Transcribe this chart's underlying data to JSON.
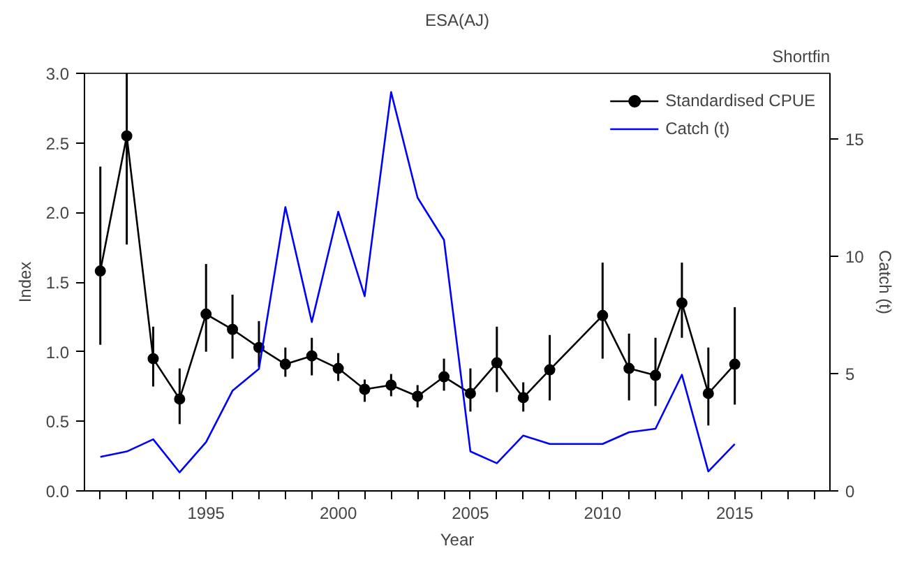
{
  "chart_data": {
    "type": "line",
    "title": "ESA(AJ)",
    "xlabel": "Year",
    "ylabel": "Index",
    "y2label": "Catch (t)",
    "annotations": [
      "Shortfin"
    ],
    "x": [
      1991,
      1992,
      1993,
      1994,
      1995,
      1996,
      1997,
      1998,
      1999,
      2000,
      2001,
      2002,
      2003,
      2004,
      2005,
      2006,
      2007,
      2008,
      2009,
      2010,
      2011,
      2012,
      2013,
      2014,
      2015
    ],
    "series": [
      {
        "name": "Standardised CPUE",
        "color": "#000000",
        "marker": "circle",
        "values": [
          1.58,
          2.55,
          0.95,
          0.66,
          1.27,
          1.16,
          1.03,
          0.91,
          0.97,
          0.88,
          0.73,
          0.76,
          0.68,
          0.82,
          0.7,
          0.92,
          0.67,
          0.87,
          null,
          1.26,
          0.88,
          0.83,
          1.35,
          0.7,
          0.91
        ],
        "errors": [
          [
            1.05,
            2.33
          ],
          [
            1.77,
            3.0
          ],
          [
            0.75,
            1.18
          ],
          [
            0.48,
            0.88
          ],
          [
            1.0,
            1.63
          ],
          [
            0.95,
            1.41
          ],
          [
            0.89,
            1.22
          ],
          [
            0.82,
            1.03
          ],
          [
            0.83,
            1.1
          ],
          [
            0.79,
            0.99
          ],
          [
            0.64,
            0.8
          ],
          [
            0.68,
            0.84
          ],
          [
            0.6,
            0.76
          ],
          [
            0.72,
            0.95
          ],
          [
            0.57,
            0.88
          ],
          [
            0.71,
            1.18
          ],
          [
            0.57,
            0.78
          ],
          [
            0.65,
            1.12
          ],
          null,
          [
            0.95,
            1.64
          ],
          [
            0.65,
            1.13
          ],
          [
            0.61,
            1.1
          ],
          [
            1.1,
            1.64
          ],
          [
            0.47,
            1.03
          ],
          [
            0.62,
            1.32
          ]
        ]
      },
      {
        "name": "Catch (t)",
        "color": "#0000ff",
        "axis": "y2",
        "marker": "none",
        "values": [
          1.45,
          1.68,
          2.2,
          0.79,
          2.08,
          4.27,
          5.2,
          12.1,
          7.2,
          11.9,
          8.3,
          17.0,
          12.5,
          10.7,
          1.68,
          1.18,
          2.36,
          2.0,
          2.0,
          2.0,
          2.5,
          2.65,
          4.95,
          0.83,
          2.0
        ]
      }
    ],
    "xlim": [
      1990.4,
      2018.6
    ],
    "xticks": [
      {
        "value": 1991,
        "label": null
      },
      {
        "value": 1992,
        "label": null
      },
      {
        "value": 1993,
        "label": null
      },
      {
        "value": 1994,
        "label": null
      },
      1995,
      {
        "value": 1996,
        "label": null
      },
      {
        "value": 1997,
        "label": null
      },
      {
        "value": 1998,
        "label": null
      },
      {
        "value": 1999,
        "label": null
      },
      2000,
      {
        "value": 2001,
        "label": null
      },
      {
        "value": 2002,
        "label": null
      },
      {
        "value": 2003,
        "label": null
      },
      {
        "value": 2004,
        "label": null
      },
      2005,
      {
        "value": 2006,
        "label": null
      },
      {
        "value": 2007,
        "label": null
      },
      {
        "value": 2008,
        "label": null
      },
      {
        "value": 2009,
        "label": null
      },
      2010,
      {
        "value": 2011,
        "label": null
      },
      {
        "value": 2012,
        "label": null
      },
      {
        "value": 2013,
        "label": null
      },
      {
        "value": 2014,
        "label": null
      },
      2015,
      {
        "value": 2016,
        "label": null
      },
      {
        "value": 2017,
        "label": null
      },
      {
        "value": 2018,
        "label": null
      }
    ],
    "ylim": [
      0,
      3.0
    ],
    "yticks": [
      {
        "value": 0,
        "label": "0.0"
      },
      {
        "value": 0.5,
        "label": "0.5"
      },
      {
        "value": 1,
        "label": "1.0"
      },
      {
        "value": 1.5,
        "label": "1.5"
      },
      {
        "value": 2,
        "label": "2.0"
      },
      {
        "value": 2.5,
        "label": "2.5"
      },
      {
        "value": 3,
        "label": "3.0"
      }
    ],
    "y2lim": [
      0,
      17.8
    ],
    "y2ticks": [
      0,
      5,
      10,
      15
    ],
    "legend": "top right",
    "grid": false,
    "line_style": "solid"
  }
}
